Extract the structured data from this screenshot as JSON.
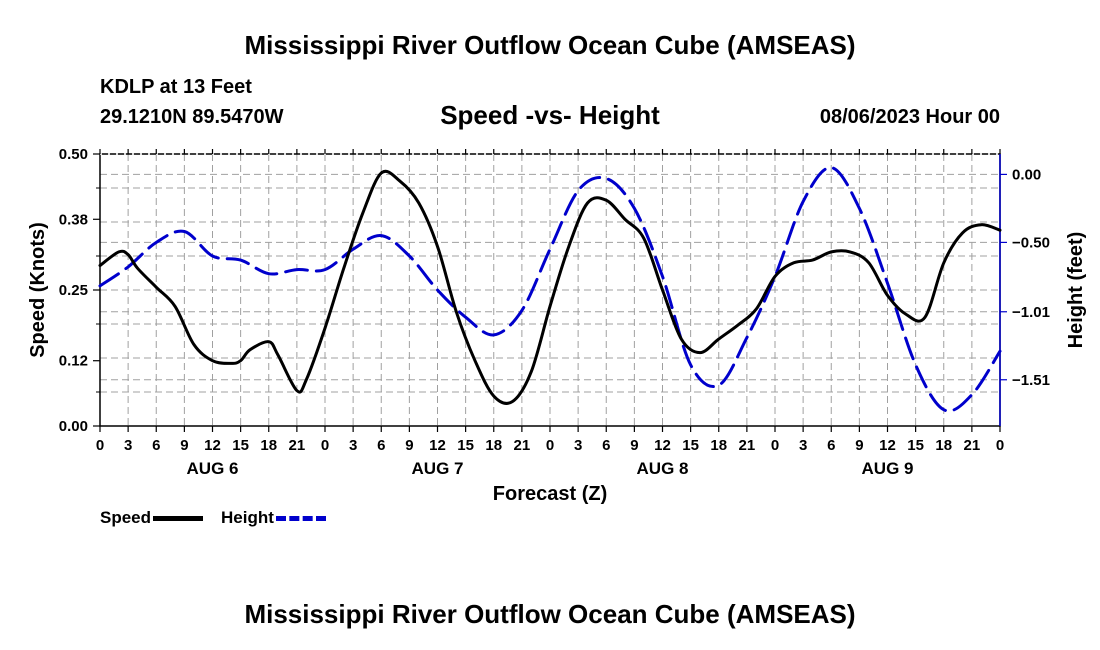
{
  "header": {
    "title": "Mississippi River Outflow Ocean Cube (AMSEAS)",
    "station": "KDLP at 13 Feet",
    "coords": "29.1210N  89.5470W",
    "subtitle": "Speed -vs- Height",
    "datetime": "08/06/2023 Hour 00"
  },
  "footer": {
    "title": "Mississippi River Outflow Ocean Cube (AMSEAS)"
  },
  "legend": {
    "speed_label": "Speed",
    "height_label": "Height"
  },
  "colors": {
    "speed": "#000000",
    "height": "#0000cc",
    "grid": "#a0a0a0"
  },
  "chart_data": {
    "type": "line",
    "xlabel": "Forecast (Z)",
    "ylabel_left": "Speed (Knots)",
    "ylabel_right": "Height (feet)",
    "x_hours_range": [
      0,
      96
    ],
    "x_tick_labels": [
      "0",
      "3",
      "6",
      "9",
      "12",
      "15",
      "18",
      "21",
      "0",
      "3",
      "6",
      "9",
      "12",
      "15",
      "18",
      "21",
      "0",
      "3",
      "6",
      "9",
      "12",
      "15",
      "18",
      "21",
      "0",
      "3",
      "6",
      "9",
      "12",
      "15",
      "18",
      "21",
      "0"
    ],
    "day_labels": [
      "AUG 6",
      "AUG 7",
      "AUG 8",
      "AUG 9"
    ],
    "y_left_ticks": [
      "0.00",
      "0.12",
      "0.25",
      "0.38",
      "0.50"
    ],
    "y_left_range": [
      0,
      0.5
    ],
    "y_right_ticks": [
      "0.00",
      "-0.50",
      "-1.01",
      "-1.51"
    ],
    "y_right_range": [
      -1.85,
      0.15
    ],
    "grid": true,
    "series": [
      {
        "name": "Speed",
        "axis": "left",
        "hours": [
          0,
          2,
          3,
          4,
          6,
          8,
          10,
          12,
          14,
          15,
          16,
          18,
          19,
          21,
          22,
          24,
          26,
          28,
          30,
          32,
          34,
          36,
          38,
          40,
          42,
          44,
          46,
          48,
          50,
          52,
          54,
          56,
          58,
          60,
          62,
          64,
          66,
          68,
          70,
          72,
          74,
          76,
          78,
          80,
          82,
          84,
          86,
          88,
          90,
          92,
          94,
          96
        ],
        "values": [
          0.295,
          0.32,
          0.315,
          0.29,
          0.255,
          0.22,
          0.15,
          0.12,
          0.115,
          0.12,
          0.14,
          0.155,
          0.13,
          0.065,
          0.085,
          0.18,
          0.29,
          0.39,
          0.465,
          0.45,
          0.41,
          0.33,
          0.21,
          0.12,
          0.055,
          0.045,
          0.1,
          0.22,
          0.33,
          0.41,
          0.415,
          0.38,
          0.345,
          0.25,
          0.16,
          0.135,
          0.16,
          0.185,
          0.215,
          0.275,
          0.3,
          0.305,
          0.32,
          0.32,
          0.3,
          0.24,
          0.205,
          0.2,
          0.3,
          0.355,
          0.37,
          0.36
        ]
      },
      {
        "name": "Height",
        "axis": "right",
        "hours": [
          0,
          3,
          6,
          9,
          12,
          15,
          18,
          21,
          24,
          27,
          30,
          33,
          36,
          39,
          42,
          45,
          48,
          51,
          54,
          57,
          60,
          63,
          66,
          69,
          72,
          75,
          78,
          81,
          84,
          87,
          90,
          93,
          96
        ],
        "values": [
          -0.82,
          -0.68,
          -0.5,
          -0.42,
          -0.6,
          -0.63,
          -0.73,
          -0.7,
          -0.7,
          -0.55,
          -0.45,
          -0.6,
          -0.85,
          -1.05,
          -1.18,
          -1.0,
          -0.55,
          -0.12,
          -0.03,
          -0.25,
          -0.75,
          -1.4,
          -1.55,
          -1.2,
          -0.75,
          -0.2,
          0.05,
          -0.25,
          -0.8,
          -1.4,
          -1.73,
          -1.62,
          -1.3
        ]
      }
    ]
  }
}
